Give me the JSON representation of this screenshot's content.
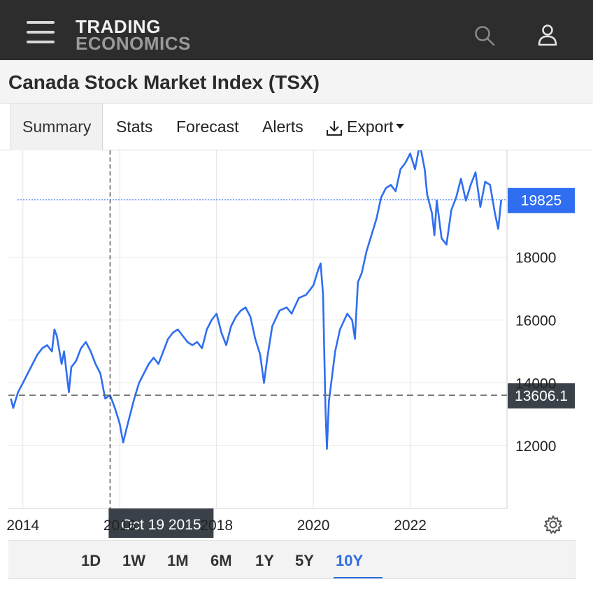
{
  "header": {
    "logo_line1": "TRADING",
    "logo_line2": "ECONOMICS",
    "menu_icon": "hamburger-menu-icon",
    "search_icon": "search-icon",
    "user_icon": "user-icon"
  },
  "page": {
    "title": "Canada Stock Market Index (TSX)"
  },
  "tabs": [
    {
      "label": "Summary",
      "active": true
    },
    {
      "label": "Stats"
    },
    {
      "label": "Forecast"
    },
    {
      "label": "Alerts"
    },
    {
      "label": "Export",
      "icon": "download-icon",
      "dropdown": true
    }
  ],
  "ranges": [
    {
      "label": "1D"
    },
    {
      "label": "1W"
    },
    {
      "label": "1M"
    },
    {
      "label": "6M"
    },
    {
      "label": "1Y"
    },
    {
      "label": "5Y"
    },
    {
      "label": "10Y",
      "active": true
    }
  ],
  "chart_data": {
    "type": "line",
    "title": "",
    "xlabel": "",
    "ylabel": "",
    "x_ticks": [
      {
        "label": "2014",
        "year": 2014.0
      },
      {
        "label": "2016",
        "year": 2016.0
      },
      {
        "label": "2018",
        "year": 2018.0
      },
      {
        "label": "2020",
        "year": 2020.0
      },
      {
        "label": "2022",
        "year": 2022.0
      }
    ],
    "y_ticks": [
      12000,
      14000,
      16000,
      18000
    ],
    "xlim": [
      2013.7,
      2024.0
    ],
    "ylim": [
      10000,
      21400
    ],
    "grid": true,
    "line_color": "#2f6ef0",
    "last_value_label": "19825",
    "last_value": 19825,
    "crosshair": {
      "date_label": "Oct 19 2015",
      "value_label": "13606.1",
      "x_year": 2015.8,
      "y_value": 13606.1
    },
    "series": [
      {
        "values": [
          [
            2013.75,
            13500
          ],
          [
            2013.8,
            13200
          ],
          [
            2013.9,
            13700
          ],
          [
            2014.0,
            14000
          ],
          [
            2014.1,
            14300
          ],
          [
            2014.2,
            14600
          ],
          [
            2014.3,
            14900
          ],
          [
            2014.4,
            15100
          ],
          [
            2014.5,
            15200
          ],
          [
            2014.6,
            15000
          ],
          [
            2014.65,
            15700
          ],
          [
            2014.7,
            15500
          ],
          [
            2014.8,
            14600
          ],
          [
            2014.85,
            15000
          ],
          [
            2014.95,
            13700
          ],
          [
            2015.0,
            14500
          ],
          [
            2015.1,
            14700
          ],
          [
            2015.2,
            15100
          ],
          [
            2015.3,
            15300
          ],
          [
            2015.4,
            15000
          ],
          [
            2015.5,
            14600
          ],
          [
            2015.6,
            14300
          ],
          [
            2015.7,
            13500
          ],
          [
            2015.8,
            13606
          ],
          [
            2015.9,
            13200
          ],
          [
            2016.0,
            12700
          ],
          [
            2016.07,
            12100
          ],
          [
            2016.15,
            12600
          ],
          [
            2016.3,
            13500
          ],
          [
            2016.4,
            14000
          ],
          [
            2016.5,
            14300
          ],
          [
            2016.6,
            14600
          ],
          [
            2016.7,
            14800
          ],
          [
            2016.8,
            14600
          ],
          [
            2016.9,
            15000
          ],
          [
            2017.0,
            15400
          ],
          [
            2017.1,
            15600
          ],
          [
            2017.2,
            15700
          ],
          [
            2017.3,
            15500
          ],
          [
            2017.4,
            15300
          ],
          [
            2017.5,
            15200
          ],
          [
            2017.6,
            15300
          ],
          [
            2017.7,
            15100
          ],
          [
            2017.8,
            15700
          ],
          [
            2017.9,
            16000
          ],
          [
            2018.0,
            16200
          ],
          [
            2018.1,
            15600
          ],
          [
            2018.2,
            15200
          ],
          [
            2018.3,
            15800
          ],
          [
            2018.4,
            16100
          ],
          [
            2018.5,
            16300
          ],
          [
            2018.6,
            16400
          ],
          [
            2018.7,
            16100
          ],
          [
            2018.8,
            15400
          ],
          [
            2018.9,
            14900
          ],
          [
            2018.98,
            14000
          ],
          [
            2019.05,
            14800
          ],
          [
            2019.15,
            15800
          ],
          [
            2019.3,
            16300
          ],
          [
            2019.45,
            16400
          ],
          [
            2019.55,
            16200
          ],
          [
            2019.7,
            16700
          ],
          [
            2019.85,
            16800
          ],
          [
            2020.0,
            17100
          ],
          [
            2020.1,
            17600
          ],
          [
            2020.15,
            17800
          ],
          [
            2020.2,
            16800
          ],
          [
            2020.25,
            13200
          ],
          [
            2020.28,
            11900
          ],
          [
            2020.32,
            13400
          ],
          [
            2020.45,
            15000
          ],
          [
            2020.55,
            15700
          ],
          [
            2020.7,
            16200
          ],
          [
            2020.8,
            16000
          ],
          [
            2020.86,
            15400
          ],
          [
            2020.92,
            17200
          ],
          [
            2021.0,
            17500
          ],
          [
            2021.1,
            18200
          ],
          [
            2021.2,
            18700
          ],
          [
            2021.3,
            19200
          ],
          [
            2021.4,
            19900
          ],
          [
            2021.5,
            20200
          ],
          [
            2021.6,
            20300
          ],
          [
            2021.7,
            20100
          ],
          [
            2021.8,
            20800
          ],
          [
            2021.9,
            21000
          ],
          [
            2022.0,
            21300
          ],
          [
            2022.1,
            20800
          ],
          [
            2022.2,
            21600
          ],
          [
            2022.3,
            20800
          ],
          [
            2022.35,
            20000
          ],
          [
            2022.45,
            19400
          ],
          [
            2022.5,
            18700
          ],
          [
            2022.55,
            19800
          ],
          [
            2022.65,
            18600
          ],
          [
            2022.75,
            18400
          ],
          [
            2022.85,
            19500
          ],
          [
            2022.95,
            19900
          ],
          [
            2023.05,
            20500
          ],
          [
            2023.15,
            19800
          ],
          [
            2023.25,
            20300
          ],
          [
            2023.35,
            20700
          ],
          [
            2023.45,
            19600
          ],
          [
            2023.55,
            20400
          ],
          [
            2023.65,
            20300
          ],
          [
            2023.75,
            19400
          ],
          [
            2023.82,
            18900
          ],
          [
            2023.88,
            19825
          ]
        ]
      }
    ]
  }
}
